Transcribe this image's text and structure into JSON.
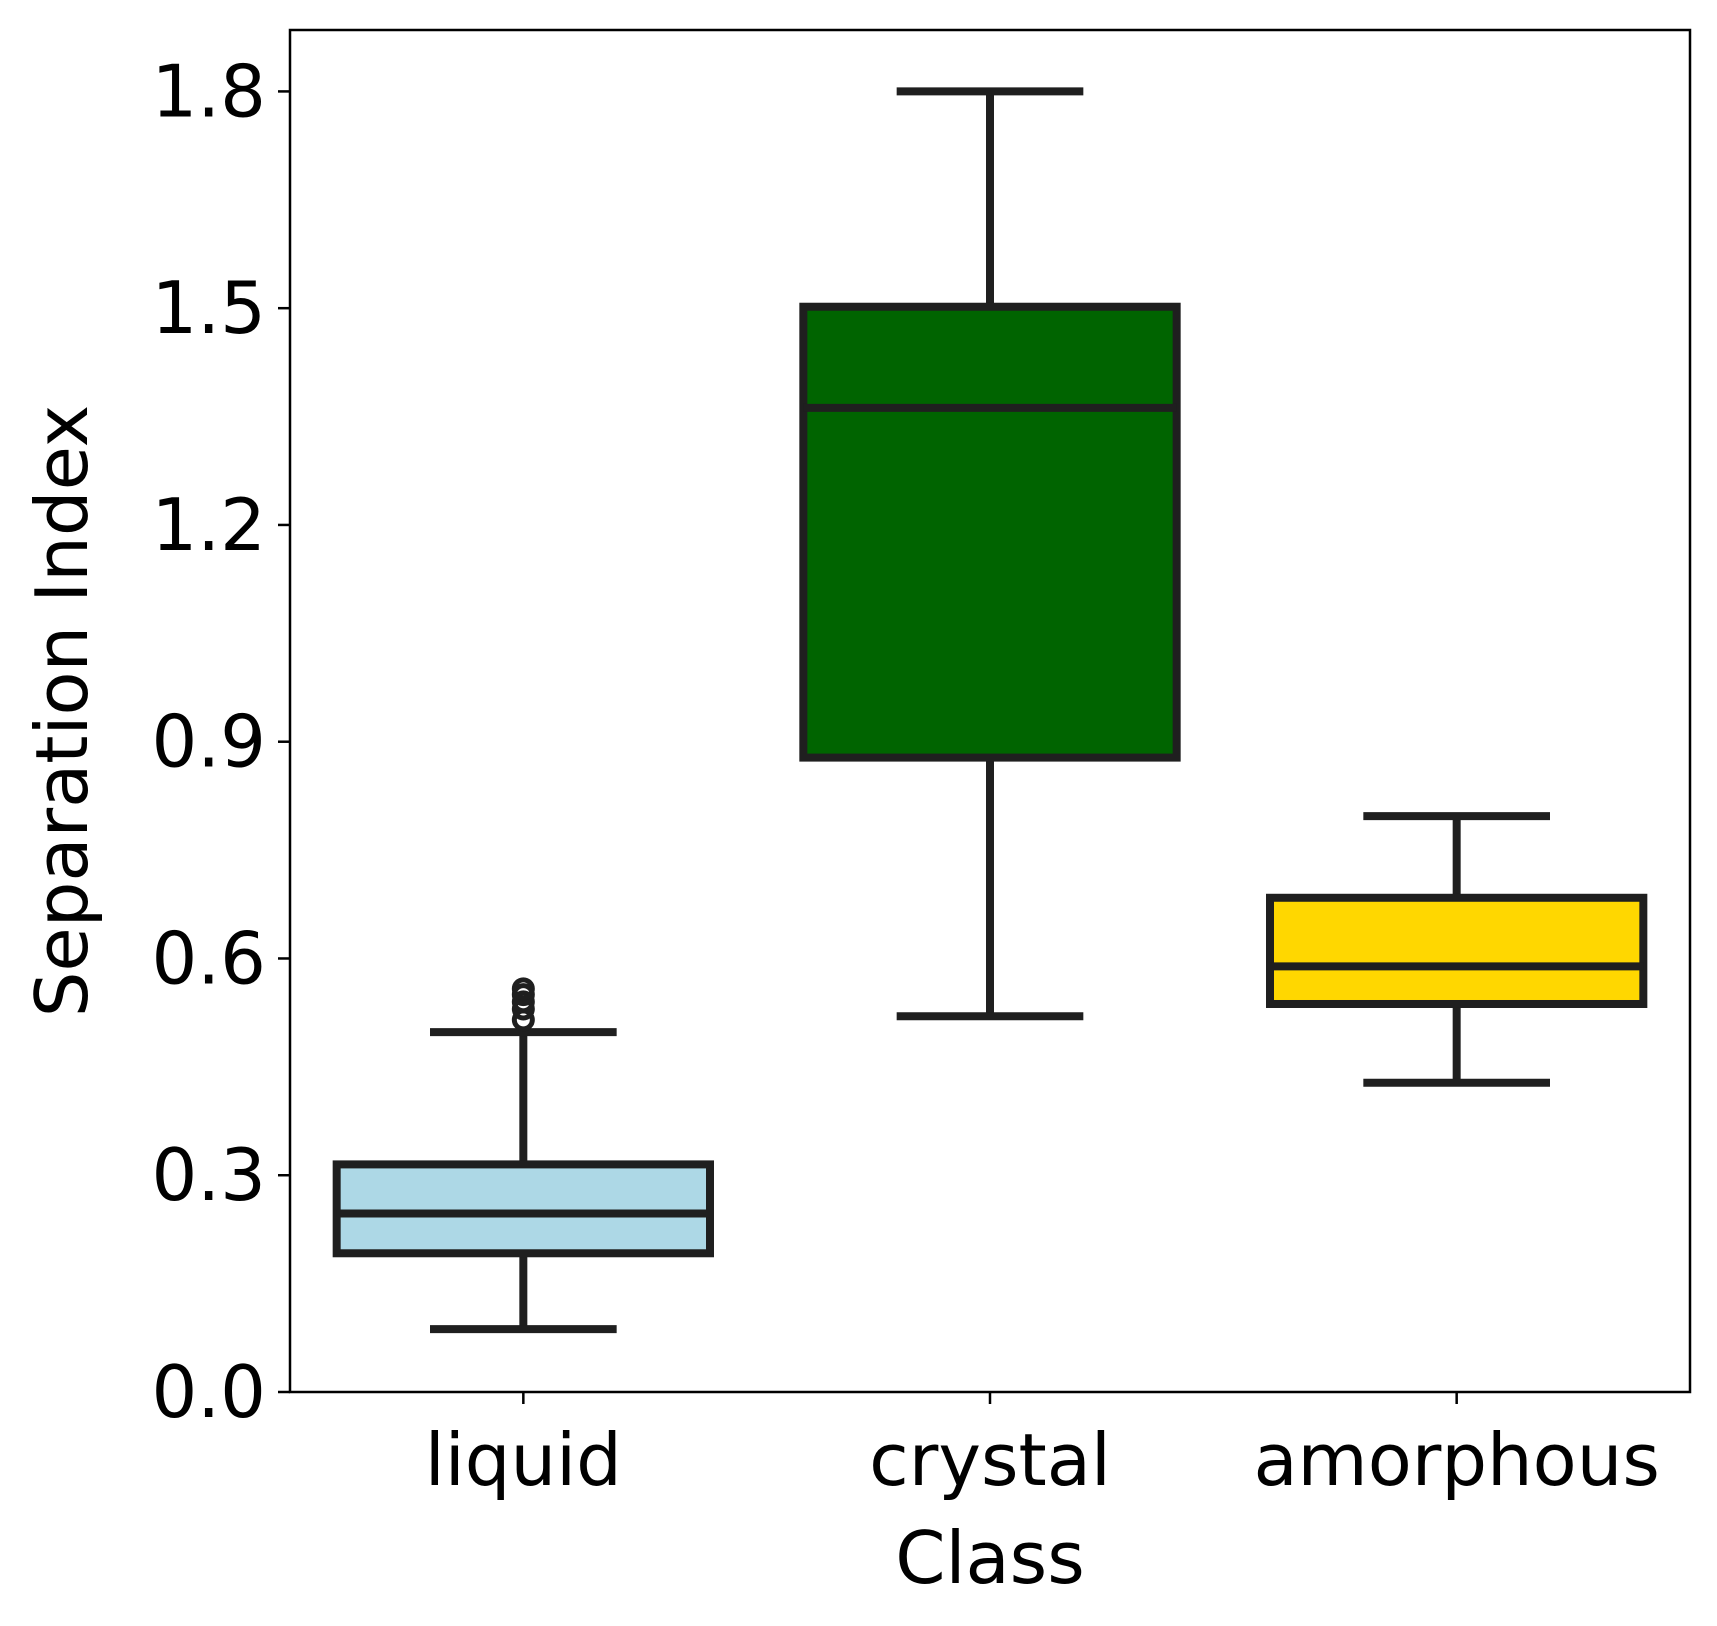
{
  "chart_data": {
    "type": "box",
    "xlabel": "Class",
    "ylabel": "Separation Index",
    "ylim": [
      0,
      1.885
    ],
    "yticks": [
      0.0,
      0.3,
      0.6,
      0.9,
      1.2,
      1.5,
      1.8
    ],
    "ytick_labels": [
      "0.0",
      "0.3",
      "0.6",
      "0.9",
      "1.2",
      "1.5",
      "1.8"
    ],
    "grid": false,
    "categories": [
      "liquid",
      "crystal",
      "amorphous"
    ],
    "boxes": [
      {
        "category": "liquid",
        "whisker_low": 0.087,
        "q1": 0.192,
        "median": 0.247,
        "q3": 0.315,
        "whisker_high": 0.498,
        "outliers": [
          0.515,
          0.53,
          0.54,
          0.55,
          0.558
        ],
        "color": "#add8e6"
      },
      {
        "category": "crystal",
        "whisker_low": 0.52,
        "q1": 0.878,
        "median": 1.362,
        "q3": 1.502,
        "whisker_high": 1.8,
        "outliers": [],
        "color": "#006400"
      },
      {
        "category": "amorphous",
        "whisker_low": 0.428,
        "q1": 0.537,
        "median": 0.589,
        "q3": 0.684,
        "whisker_high": 0.797,
        "outliers": [],
        "color": "#ffd700"
      }
    ],
    "edge_color": "#1f1f1f"
  }
}
